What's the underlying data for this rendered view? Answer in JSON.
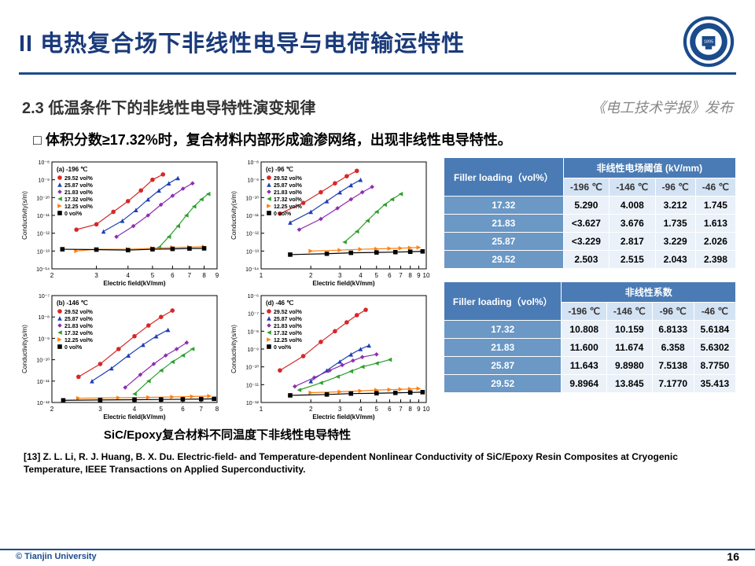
{
  "header": {
    "title": "II 电热复合场下非线性电导与电荷输运特性",
    "logo_label": "Tianjin University"
  },
  "subtitle": "2.3 低温条件下的非线性电导特性演变规律",
  "publication": "《电工技术学报》发布",
  "bullet": "体积分数≥17.32%时，复合材料内部形成逾渗网络，出现非线性电导特性。",
  "chart_caption": "SiC/Epoxy复合材料不同温度下非线性电导特性",
  "charts": {
    "ylabel": "Conductivity(s/m)",
    "xlabel": "Electric field(kV/mm)",
    "panels": [
      {
        "id": "a",
        "temp": "-196 ℃",
        "xticks": [
          2,
          3,
          4,
          5,
          6,
          7,
          8,
          9
        ],
        "yticks": [
          -14,
          -13,
          -12,
          -11,
          -10,
          -9,
          -8
        ],
        "legend": [
          "29.52 vol%",
          "25.87 vol%",
          "21.83 vol%",
          "17.32 vol%",
          "12.25 vol%",
          "0 vol%"
        ]
      },
      {
        "id": "c",
        "temp": "-96 ℃",
        "xticks": [
          1,
          2,
          3,
          4,
          5,
          6,
          7,
          8,
          9,
          10
        ],
        "yticks": [
          -14,
          -13,
          -12,
          -11,
          -10,
          -9,
          -8
        ],
        "legend": [
          "29.52 vol%",
          "25.87 vol%",
          "21.83 vol%",
          "17.32 vol%",
          "12.25 vol%",
          "0 vol%"
        ]
      },
      {
        "id": "b",
        "temp": "-146 ℃",
        "xticks": [
          2,
          3,
          4,
          5,
          6,
          7,
          8
        ],
        "yticks": [
          -12,
          -11,
          -10,
          -9,
          -8,
          -7
        ],
        "legend": [
          "29.52 vol%",
          "25.87 vol%",
          "21.83 vol%",
          "17.32 vol%",
          "12.25 vol%",
          "0 vol%"
        ]
      },
      {
        "id": "d",
        "temp": "-46 ℃",
        "xticks": [
          1,
          2,
          3,
          4,
          5,
          6,
          7,
          8,
          9,
          10
        ],
        "yticks": [
          -12,
          -11,
          -10,
          -9,
          -8,
          -7,
          -6
        ],
        "legend": [
          "29.52 vol%",
          "25.87 vol%",
          "21.83 vol%",
          "17.32 vol%",
          "12.25 vol%",
          "0 vol%"
        ]
      }
    ],
    "series_colors": {
      "29.52": "#d62728",
      "25.87": "#1f3fb4",
      "21.83": "#8c2fb0",
      "17.32": "#2ca02c",
      "12.25": "#ff7f0e",
      "0": "#000000"
    },
    "markers": {
      "29.52": "circle",
      "25.87": "triangle",
      "21.83": "diamond",
      "17.32": "triangle-left",
      "12.25": "triangle-right",
      "0": "square"
    },
    "data": {
      "a": {
        "29.52": [
          [
            2.5,
            -11.8
          ],
          [
            3,
            -11.5
          ],
          [
            3.5,
            -10.8
          ],
          [
            4,
            -10.2
          ],
          [
            4.5,
            -9.6
          ],
          [
            5,
            -9.0
          ],
          [
            5.5,
            -8.7
          ]
        ],
        "25.87": [
          [
            3.2,
            -11.9
          ],
          [
            3.8,
            -11.3
          ],
          [
            4.3,
            -10.7
          ],
          [
            4.8,
            -10.1
          ],
          [
            5.3,
            -9.6
          ],
          [
            5.8,
            -9.2
          ],
          [
            6.3,
            -8.9
          ]
        ],
        "21.83": [
          [
            3.6,
            -12.2
          ],
          [
            4.2,
            -11.6
          ],
          [
            4.8,
            -11.0
          ],
          [
            5.4,
            -10.4
          ],
          [
            6.0,
            -9.9
          ],
          [
            6.6,
            -9.5
          ],
          [
            7.2,
            -9.2
          ]
        ],
        "17.32": [
          [
            5.3,
            -12.8
          ],
          [
            5.8,
            -12.2
          ],
          [
            6.3,
            -11.6
          ],
          [
            6.8,
            -11.0
          ],
          [
            7.3,
            -10.5
          ],
          [
            7.8,
            -10.1
          ],
          [
            8.3,
            -9.8
          ]
        ],
        "12.25": [
          [
            2.5,
            -13.0
          ],
          [
            3,
            -12.9
          ],
          [
            4,
            -12.9
          ],
          [
            5,
            -12.85
          ],
          [
            6,
            -12.8
          ],
          [
            7,
            -12.78
          ],
          [
            8,
            -12.76
          ]
        ],
        "0": [
          [
            2.2,
            -12.9
          ],
          [
            3,
            -12.92
          ],
          [
            4,
            -12.95
          ],
          [
            5,
            -12.9
          ],
          [
            6,
            -12.88
          ],
          [
            7,
            -12.86
          ],
          [
            8,
            -12.85
          ]
        ]
      },
      "c": {
        "29.52": [
          [
            1.3,
            -10.9
          ],
          [
            1.8,
            -10.3
          ],
          [
            2.3,
            -9.7
          ],
          [
            2.8,
            -9.2
          ],
          [
            3.3,
            -8.8
          ],
          [
            3.8,
            -8.5
          ]
        ],
        "25.87": [
          [
            1.5,
            -11.4
          ],
          [
            2,
            -10.8
          ],
          [
            2.5,
            -10.2
          ],
          [
            3,
            -9.7
          ],
          [
            3.5,
            -9.3
          ],
          [
            4,
            -9.0
          ]
        ],
        "21.83": [
          [
            1.7,
            -11.8
          ],
          [
            2.3,
            -11.2
          ],
          [
            2.9,
            -10.6
          ],
          [
            3.5,
            -10.1
          ],
          [
            4.1,
            -9.7
          ],
          [
            4.7,
            -9.4
          ]
        ],
        "17.32": [
          [
            3.2,
            -12.5
          ],
          [
            3.8,
            -11.9
          ],
          [
            4.4,
            -11.3
          ],
          [
            5.0,
            -10.8
          ],
          [
            5.6,
            -10.4
          ],
          [
            6.2,
            -10.1
          ],
          [
            7,
            -9.8
          ]
        ],
        "12.25": [
          [
            2,
            -13.0
          ],
          [
            3,
            -12.95
          ],
          [
            4,
            -12.9
          ],
          [
            5,
            -12.88
          ],
          [
            6,
            -12.86
          ],
          [
            7,
            -12.84
          ],
          [
            8,
            -12.82
          ],
          [
            9,
            -12.8
          ]
        ],
        "0": [
          [
            1.5,
            -13.2
          ],
          [
            2.5,
            -13.15
          ],
          [
            3.5,
            -13.1
          ],
          [
            5,
            -13.08
          ],
          [
            6.5,
            -13.06
          ],
          [
            8,
            -13.04
          ],
          [
            9.5,
            -13.02
          ]
        ]
      },
      "b": {
        "29.52": [
          [
            2.5,
            -10.8
          ],
          [
            3,
            -10.2
          ],
          [
            3.5,
            -9.5
          ],
          [
            4,
            -8.9
          ],
          [
            4.5,
            -8.4
          ],
          [
            5,
            -8.0
          ],
          [
            5.5,
            -7.7
          ]
        ],
        "25.87": [
          [
            2.8,
            -11.0
          ],
          [
            3.3,
            -10.4
          ],
          [
            3.8,
            -9.8
          ],
          [
            4.3,
            -9.3
          ],
          [
            4.8,
            -8.9
          ],
          [
            5.3,
            -8.6
          ]
        ],
        "21.83": [
          [
            3.7,
            -11.3
          ],
          [
            4.2,
            -10.7
          ],
          [
            4.7,
            -10.2
          ],
          [
            5.2,
            -9.8
          ],
          [
            5.7,
            -9.5
          ],
          [
            6.2,
            -9.2
          ]
        ],
        "17.32": [
          [
            4.0,
            -11.6
          ],
          [
            4.5,
            -11.0
          ],
          [
            5.0,
            -10.5
          ],
          [
            5.5,
            -10.1
          ],
          [
            6.0,
            -9.8
          ],
          [
            6.5,
            -9.5
          ]
        ],
        "12.25": [
          [
            2.5,
            -11.8
          ],
          [
            3.5,
            -11.78
          ],
          [
            4.5,
            -11.76
          ],
          [
            5.5,
            -11.74
          ],
          [
            6.5,
            -11.72
          ],
          [
            7.5,
            -11.7
          ]
        ],
        "0": [
          [
            2.2,
            -11.9
          ],
          [
            3,
            -11.88
          ],
          [
            4,
            -11.87
          ],
          [
            5,
            -11.86
          ],
          [
            6,
            -11.85
          ],
          [
            7,
            -11.84
          ],
          [
            7.8,
            -11.83
          ]
        ]
      },
      "d": {
        "29.52": [
          [
            1.3,
            -10.2
          ],
          [
            1.8,
            -9.4
          ],
          [
            2.3,
            -8.6
          ],
          [
            2.8,
            -8.0
          ],
          [
            3.3,
            -7.5
          ],
          [
            3.8,
            -7.1
          ],
          [
            4.3,
            -6.8
          ]
        ],
        "25.87": [
          [
            2.0,
            -10.8
          ],
          [
            2.5,
            -10.2
          ],
          [
            3.0,
            -9.7
          ],
          [
            3.5,
            -9.3
          ],
          [
            4.0,
            -9.0
          ],
          [
            4.5,
            -8.8
          ]
        ],
        "21.83": [
          [
            1.6,
            -11.1
          ],
          [
            2.1,
            -10.6
          ],
          [
            2.6,
            -10.2
          ],
          [
            3.1,
            -9.9
          ],
          [
            3.6,
            -9.65
          ],
          [
            4.1,
            -9.45
          ],
          [
            5,
            -9.3
          ]
        ],
        "17.32": [
          [
            1.7,
            -11.3
          ],
          [
            2.3,
            -10.9
          ],
          [
            2.9,
            -10.55
          ],
          [
            3.5,
            -10.25
          ],
          [
            4.1,
            -10.0
          ],
          [
            5,
            -9.8
          ],
          [
            6,
            -9.6
          ]
        ],
        "12.25": [
          [
            2,
            -11.45
          ],
          [
            3,
            -11.4
          ],
          [
            4,
            -11.35
          ],
          [
            5,
            -11.3
          ],
          [
            6,
            -11.28
          ],
          [
            7,
            -11.26
          ],
          [
            8,
            -11.24
          ],
          [
            9,
            -11.22
          ]
        ],
        "0": [
          [
            1.5,
            -11.6
          ],
          [
            2.5,
            -11.55
          ],
          [
            3.5,
            -11.5
          ],
          [
            5,
            -11.48
          ],
          [
            6.5,
            -11.46
          ],
          [
            8,
            -11.44
          ],
          [
            9.5,
            -11.42
          ]
        ]
      }
    }
  },
  "table1": {
    "title": "非线性电场阈值 (kV/mm)",
    "rowhdr": "Filler loading（vol%）",
    "cols": [
      "-196 ℃",
      "-146 ℃",
      "-96 ℃",
      "-46 ℃"
    ],
    "rows": [
      {
        "label": "17.32",
        "vals": [
          "5.290",
          "4.008",
          "3.212",
          "1.745"
        ]
      },
      {
        "label": "21.83",
        "vals": [
          "<3.627",
          "3.676",
          "1.735",
          "1.613"
        ]
      },
      {
        "label": "25.87",
        "vals": [
          "<3.229",
          "2.817",
          "3.229",
          "2.026"
        ]
      },
      {
        "label": "29.52",
        "vals": [
          "2.503",
          "2.515",
          "2.043",
          "2.398"
        ]
      }
    ]
  },
  "table2": {
    "title": "非线性系数",
    "rowhdr": "Filler loading（vol%）",
    "cols": [
      "-196 ℃",
      "-146 ℃",
      "-96 ℃",
      "-46 ℃"
    ],
    "rows": [
      {
        "label": "17.32",
        "vals": [
          "10.808",
          "10.159",
          "6.8133",
          "5.6184"
        ]
      },
      {
        "label": "21.83",
        "vals": [
          "11.600",
          "11.674",
          "6.358",
          "5.6302"
        ]
      },
      {
        "label": "25.87",
        "vals": [
          "11.643",
          "9.8980",
          "7.5138",
          "8.7750"
        ]
      },
      {
        "label": "29.52",
        "vals": [
          "9.8964",
          "13.845",
          "7.1770",
          "35.413"
        ]
      }
    ]
  },
  "citation": "[13] Z. L. Li, R. J. Huang, B. X. Du. Electric-field- and Temperature-dependent Nonlinear Conductivity of SiC/Epoxy Resin Composites at Cryogenic Temperature, IEEE Transactions on Applied Superconductivity.",
  "footer": {
    "copyright": "© Tianjin University",
    "page": "16"
  }
}
